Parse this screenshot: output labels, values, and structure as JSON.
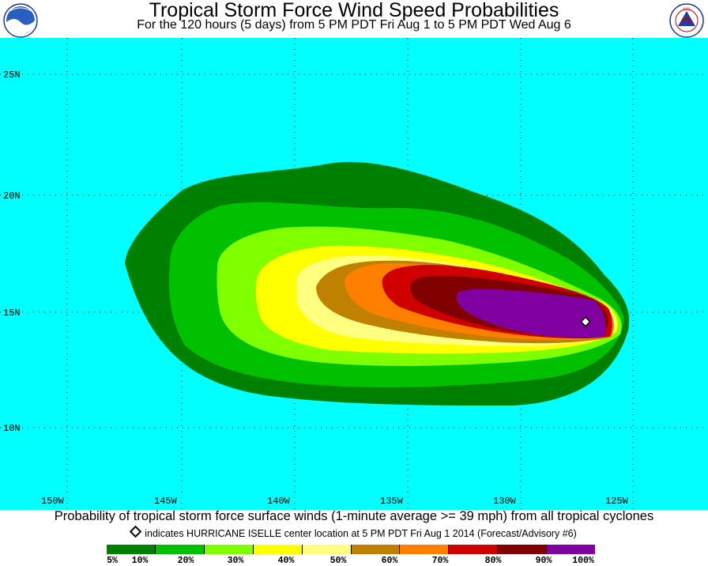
{
  "header": {
    "title": "Tropical Storm Force Wind Speed Probabilities",
    "subtitle": "For the 120 hours (5 days) from 5 PM PDT Fri Aug 1 to 5 PM PDT Wed Aug 6",
    "left_logo": "NOAA",
    "right_logo": "NATIONAL WEATHER SERVICE"
  },
  "map": {
    "background_color": "#00ffff",
    "lat_labels": [
      "25N",
      "20N",
      "15N",
      "10N"
    ],
    "lon_labels": [
      "150W",
      "145W",
      "140W",
      "135W",
      "130W",
      "125W"
    ],
    "storm_marker": {
      "name": "HURRICANE ISELLE",
      "lon": -126.6,
      "lat": 14.6
    }
  },
  "caption": "Probability of tropical storm force surface winds (1-minute average >= 39 mph) from all tropical cyclones",
  "marker_note": "indicates HURRICANE ISELLE center location at 5 PM PDT Fri Aug 1 2014 (Forecast/Advisory #6)",
  "legend": {
    "colors": [
      "#008000",
      "#00c000",
      "#80ff00",
      "#ffff00",
      "#ffff80",
      "#c08000",
      "#ff8000",
      "#d00000",
      "#800000",
      "#8000a0"
    ],
    "ticks": [
      "5%",
      "10%",
      "20%",
      "30%",
      "40%",
      "50%",
      "60%",
      "70%",
      "80%",
      "90%",
      "100%"
    ]
  }
}
